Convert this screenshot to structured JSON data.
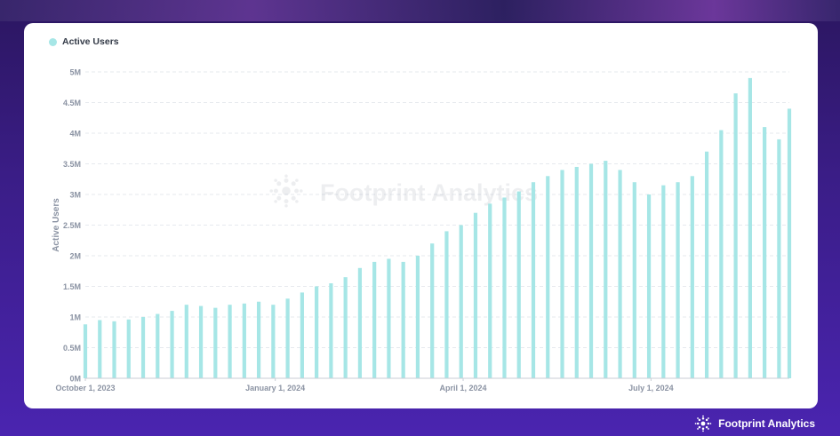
{
  "legend": {
    "label": "Active Users",
    "color": "#a6e6e6"
  },
  "watermark": {
    "text": "Footprint Analytics",
    "icon": "footprint-logo-icon"
  },
  "brand": {
    "text": "Footprint Analytics",
    "icon": "footprint-logo-icon"
  },
  "chart_data": {
    "type": "bar",
    "ylabel": "Active Users",
    "xlabel": "",
    "ylim": [
      0,
      5000000
    ],
    "yticks": [
      0,
      500000,
      1000000,
      1500000,
      2000000,
      2500000,
      3000000,
      3500000,
      4000000,
      4500000,
      5000000
    ],
    "ytick_labels": [
      "0M",
      "0.5M",
      "1M",
      "1.5M",
      "2M",
      "2.5M",
      "3M",
      "3.5M",
      "4M",
      "4.5M",
      "5M"
    ],
    "xticks": [
      {
        "date": "2023-10-01",
        "label": "October 1, 2023"
      },
      {
        "date": "2024-01-01",
        "label": "January 1, 2024"
      },
      {
        "date": "2024-04-01",
        "label": "April 1, 2024"
      },
      {
        "date": "2024-07-01",
        "label": "July 1, 2024"
      }
    ],
    "grid": true,
    "legend_position": "top-left",
    "bar_color": "#a6e6e6",
    "x_start": "2023-10-01",
    "x_end": "2024-09-06",
    "series": [
      {
        "name": "Active Users",
        "x": [
          "2023-10-01",
          "2023-10-08",
          "2023-10-15",
          "2023-10-22",
          "2023-10-29",
          "2023-11-05",
          "2023-11-12",
          "2023-11-19",
          "2023-11-26",
          "2023-12-03",
          "2023-12-10",
          "2023-12-17",
          "2023-12-24",
          "2023-12-31",
          "2024-01-07",
          "2024-01-14",
          "2024-01-21",
          "2024-01-28",
          "2024-02-04",
          "2024-02-11",
          "2024-02-18",
          "2024-02-25",
          "2024-03-03",
          "2024-03-10",
          "2024-03-17",
          "2024-03-24",
          "2024-03-31",
          "2024-04-07",
          "2024-04-14",
          "2024-04-21",
          "2024-04-28",
          "2024-05-05",
          "2024-05-12",
          "2024-05-19",
          "2024-05-26",
          "2024-06-02",
          "2024-06-09",
          "2024-06-16",
          "2024-06-23",
          "2024-06-30",
          "2024-07-07",
          "2024-07-14",
          "2024-07-21",
          "2024-07-28",
          "2024-08-04",
          "2024-08-11",
          "2024-08-18",
          "2024-08-25",
          "2024-09-01",
          "2024-09-06"
        ],
        "values": [
          880000,
          950000,
          930000,
          960000,
          1000000,
          1050000,
          1100000,
          1200000,
          1180000,
          1150000,
          1200000,
          1220000,
          1250000,
          1200000,
          1300000,
          1400000,
          1500000,
          1550000,
          1650000,
          1800000,
          1900000,
          1950000,
          1900000,
          2000000,
          2200000,
          2400000,
          2500000,
          2700000,
          2850000,
          2950000,
          3050000,
          3200000,
          3300000,
          3400000,
          3450000,
          3500000,
          3550000,
          3400000,
          3200000,
          3000000,
          3150000,
          3200000,
          3300000,
          3700000,
          4050000,
          4650000,
          4900000,
          4100000,
          3900000,
          4400000
        ]
      }
    ]
  }
}
